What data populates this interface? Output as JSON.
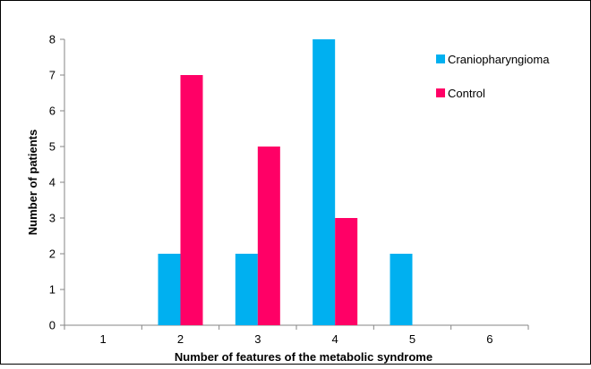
{
  "chart_data": {
    "type": "bar",
    "categories": [
      "1",
      "2",
      "3",
      "4",
      "5",
      "6"
    ],
    "series": [
      {
        "name": "Craniopharyngioma",
        "color": "#00b0f0",
        "values": [
          0,
          2,
          2,
          8,
          2,
          0
        ]
      },
      {
        "name": "Control",
        "color": "#ff0066",
        "values": [
          0,
          7,
          5,
          3,
          0,
          0
        ]
      }
    ],
    "xlabel": "Number of features of the metabolic syndrome",
    "ylabel": "Number of patients",
    "ylim": [
      0,
      8
    ],
    "yticks": [
      "0",
      "1",
      "2",
      "3",
      "4",
      "5",
      "6",
      "7",
      "8"
    ],
    "grid": false,
    "legend_position": "top-right"
  }
}
